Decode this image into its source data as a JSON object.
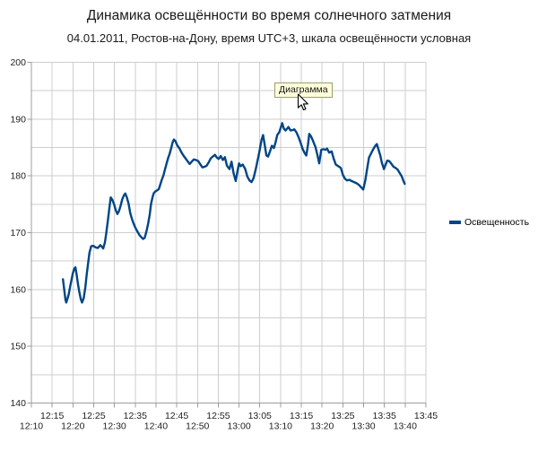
{
  "header": {
    "title": "Динамика освещённости во время солнечного затмения",
    "subtitle": "04.01.2011, Ростов-на-Дону, время UTC+3, шкала освещённости условная"
  },
  "ui": {
    "tooltip_label": "Диаграмма",
    "cursor": "arrow-pointer"
  },
  "colors": {
    "series_line": "#004586",
    "gridline": "#cdcdcd",
    "axis": "#9c9c9c",
    "tooltip_bg": "#ffffdb",
    "tooltip_border": "#9c9c74"
  },
  "chart_data": {
    "type": "line",
    "title": "Динамика освещённости во время солнечного затмения",
    "subtitle": "04.01.2011, Ростов-на-Дону, время UTC+3, шкала освещённости условная",
    "grid": "on",
    "legend_position": "right",
    "x_axis": {
      "unit": "time (UTC+3), minutes after 12:10",
      "range_minutes": [
        0,
        95
      ],
      "tick_interval_minutes": 5,
      "tick_labels": [
        "12:10",
        "12:15",
        "12:20",
        "12:25",
        "12:30",
        "12:35",
        "12:40",
        "12:45",
        "12:50",
        "12:55",
        "13:00",
        "13:05",
        "13:10",
        "13:15",
        "13:20",
        "13:25",
        "13:30",
        "13:35",
        "13:40",
        "13:45"
      ],
      "label_rows": "alternating (even ticks bottom row, odd ticks top row)"
    },
    "y_axis": {
      "range": [
        140,
        200
      ],
      "gridline_step": 5,
      "label_step": 10,
      "tick_labels": [
        "140",
        "150",
        "160",
        "170",
        "180",
        "190",
        "200"
      ]
    },
    "series": [
      {
        "name": "Освещенность",
        "color": "#004586",
        "points": [
          [
            7.6,
            161.8
          ],
          [
            7.9,
            160.0
          ],
          [
            8.2,
            158.2
          ],
          [
            8.4,
            157.7
          ],
          [
            8.7,
            158.4
          ],
          [
            9.0,
            159.2
          ],
          [
            9.3,
            160.4
          ],
          [
            9.6,
            161.5
          ],
          [
            10.0,
            162.9
          ],
          [
            10.3,
            163.6
          ],
          [
            10.6,
            163.9
          ],
          [
            10.9,
            162.6
          ],
          [
            11.2,
            161.0
          ],
          [
            11.5,
            159.7
          ],
          [
            11.9,
            158.3
          ],
          [
            12.2,
            157.7
          ],
          [
            12.6,
            158.5
          ],
          [
            13.0,
            160.4
          ],
          [
            13.3,
            162.5
          ],
          [
            13.7,
            164.9
          ],
          [
            14.0,
            166.5
          ],
          [
            14.4,
            167.6
          ],
          [
            14.9,
            167.7
          ],
          [
            15.5,
            167.4
          ],
          [
            16.0,
            167.3
          ],
          [
            16.6,
            167.8
          ],
          [
            17.0,
            167.5
          ],
          [
            17.3,
            167.2
          ],
          [
            17.7,
            168.3
          ],
          [
            18.0,
            169.8
          ],
          [
            18.4,
            172.0
          ],
          [
            18.8,
            174.5
          ],
          [
            19.1,
            176.2
          ],
          [
            19.5,
            175.8
          ],
          [
            19.9,
            175.0
          ],
          [
            20.3,
            174.0
          ],
          [
            20.7,
            173.3
          ],
          [
            21.1,
            173.8
          ],
          [
            21.5,
            174.8
          ],
          [
            21.9,
            175.9
          ],
          [
            22.3,
            176.6
          ],
          [
            22.6,
            176.9
          ],
          [
            23.0,
            176.2
          ],
          [
            23.4,
            175.1
          ],
          [
            23.8,
            173.5
          ],
          [
            24.1,
            172.7
          ],
          [
            24.5,
            171.8
          ],
          [
            24.9,
            171.1
          ],
          [
            25.3,
            170.5
          ],
          [
            25.7,
            170.0
          ],
          [
            26.1,
            169.5
          ],
          [
            26.5,
            169.2
          ],
          [
            26.9,
            168.9
          ],
          [
            27.3,
            169.1
          ],
          [
            27.7,
            170.2
          ],
          [
            28.1,
            171.5
          ],
          [
            28.5,
            173.2
          ],
          [
            28.8,
            175.0
          ],
          [
            29.2,
            176.3
          ],
          [
            29.5,
            177.0
          ],
          [
            29.9,
            177.3
          ],
          [
            30.4,
            177.5
          ],
          [
            30.7,
            177.7
          ],
          [
            31.0,
            178.4
          ],
          [
            31.4,
            179.3
          ],
          [
            31.8,
            180.1
          ],
          [
            32.2,
            181.2
          ],
          [
            32.6,
            182.3
          ],
          [
            33.0,
            183.3
          ],
          [
            33.3,
            183.9
          ],
          [
            33.7,
            185.0
          ],
          [
            34.0,
            185.9
          ],
          [
            34.3,
            186.4
          ],
          [
            34.7,
            186.1
          ],
          [
            35.1,
            185.4
          ],
          [
            35.6,
            184.9
          ],
          [
            36.1,
            184.2
          ],
          [
            36.6,
            183.6
          ],
          [
            37.1,
            183.1
          ],
          [
            37.6,
            182.6
          ],
          [
            38.1,
            182.1
          ],
          [
            38.6,
            182.5
          ],
          [
            39.1,
            182.9
          ],
          [
            39.6,
            182.8
          ],
          [
            40.2,
            182.6
          ],
          [
            40.7,
            182.0
          ],
          [
            41.2,
            181.5
          ],
          [
            41.7,
            181.6
          ],
          [
            42.2,
            181.8
          ],
          [
            42.7,
            182.4
          ],
          [
            43.2,
            183.1
          ],
          [
            43.7,
            183.4
          ],
          [
            44.2,
            183.7
          ],
          [
            44.7,
            183.2
          ],
          [
            45.1,
            183.0
          ],
          [
            45.6,
            183.5
          ],
          [
            46.1,
            182.8
          ],
          [
            46.6,
            183.3
          ],
          [
            47.1,
            181.8
          ],
          [
            47.7,
            181.2
          ],
          [
            48.2,
            182.5
          ],
          [
            48.7,
            180.4
          ],
          [
            49.2,
            179.1
          ],
          [
            49.6,
            180.7
          ],
          [
            50.0,
            182.2
          ],
          [
            50.4,
            181.7
          ],
          [
            50.9,
            182.0
          ],
          [
            51.5,
            181.2
          ],
          [
            52.0,
            179.9
          ],
          [
            52.5,
            179.2
          ],
          [
            53.0,
            178.9
          ],
          [
            53.5,
            179.6
          ],
          [
            54.0,
            181.1
          ],
          [
            54.5,
            182.8
          ],
          [
            55.0,
            184.6
          ],
          [
            55.4,
            186.3
          ],
          [
            55.8,
            187.2
          ],
          [
            56.2,
            185.4
          ],
          [
            56.6,
            183.6
          ],
          [
            57.0,
            183.4
          ],
          [
            57.5,
            184.4
          ],
          [
            57.9,
            185.3
          ],
          [
            58.4,
            184.9
          ],
          [
            58.8,
            185.9
          ],
          [
            59.2,
            187.2
          ],
          [
            59.7,
            187.7
          ],
          [
            60.0,
            188.4
          ],
          [
            60.4,
            189.3
          ],
          [
            60.8,
            188.3
          ],
          [
            61.2,
            188.0
          ],
          [
            61.9,
            188.6
          ],
          [
            62.4,
            188.0
          ],
          [
            63.0,
            188.1
          ],
          [
            63.3,
            188.2
          ],
          [
            63.8,
            187.7
          ],
          [
            64.3,
            186.9
          ],
          [
            64.8,
            185.9
          ],
          [
            65.3,
            184.8
          ],
          [
            65.8,
            184.0
          ],
          [
            66.2,
            183.6
          ],
          [
            66.6,
            185.5
          ],
          [
            66.9,
            187.4
          ],
          [
            67.3,
            187.0
          ],
          [
            67.8,
            186.2
          ],
          [
            68.4,
            185.1
          ],
          [
            68.9,
            183.6
          ],
          [
            69.3,
            182.2
          ],
          [
            69.8,
            184.6
          ],
          [
            70.3,
            184.7
          ],
          [
            70.8,
            184.6
          ],
          [
            71.2,
            184.8
          ],
          [
            71.7,
            184.1
          ],
          [
            72.3,
            184.3
          ],
          [
            72.8,
            183.0
          ],
          [
            73.3,
            182.0
          ],
          [
            73.9,
            181.7
          ],
          [
            74.5,
            181.4
          ],
          [
            75.0,
            180.2
          ],
          [
            75.5,
            179.5
          ],
          [
            76.0,
            179.2
          ],
          [
            76.6,
            179.3
          ],
          [
            77.1,
            179.1
          ],
          [
            77.7,
            178.9
          ],
          [
            78.3,
            178.7
          ],
          [
            78.9,
            178.4
          ],
          [
            79.4,
            178.0
          ],
          [
            79.9,
            177.6
          ],
          [
            80.4,
            179.2
          ],
          [
            80.8,
            181.0
          ],
          [
            81.3,
            183.2
          ],
          [
            81.9,
            184.1
          ],
          [
            82.4,
            184.8
          ],
          [
            82.9,
            185.4
          ],
          [
            83.2,
            185.6
          ],
          [
            83.6,
            184.6
          ],
          [
            84.0,
            183.6
          ],
          [
            84.4,
            182.3
          ],
          [
            84.9,
            181.2
          ],
          [
            85.3,
            182.0
          ],
          [
            85.7,
            182.7
          ],
          [
            86.2,
            182.6
          ],
          [
            86.7,
            182.1
          ],
          [
            87.2,
            181.6
          ],
          [
            87.7,
            181.4
          ],
          [
            88.2,
            181.1
          ],
          [
            88.7,
            180.5
          ],
          [
            89.2,
            179.9
          ],
          [
            89.6,
            179.1
          ],
          [
            89.9,
            178.6
          ]
        ]
      }
    ]
  }
}
